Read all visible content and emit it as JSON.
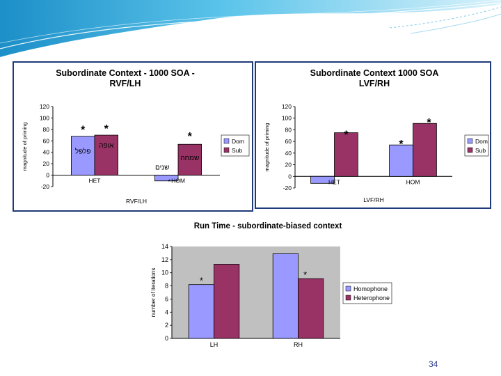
{
  "slide": {
    "page_number": "34"
  },
  "colors": {
    "dom": "#9999ff",
    "sub": "#993366",
    "plot_bg": "#c0c0c0",
    "border": "#1f3a7a"
  },
  "chart_data": [
    {
      "type": "bar",
      "title": "Subordinate Context - 1000 SOA -",
      "subtitle": "RVF/LH",
      "xlabel": "RVF/LH",
      "ylabel": "magnitude of priming",
      "ylim": [
        -20,
        120
      ],
      "yticks": [
        "120",
        "100",
        "80",
        "60",
        "40",
        "20",
        "0",
        "-20"
      ],
      "categories": [
        "HET",
        "HOM"
      ],
      "series": [
        {
          "name": "Dom",
          "values": [
            68,
            -10
          ]
        },
        {
          "name": "Sub",
          "values": [
            70,
            54
          ]
        }
      ],
      "annotations": [
        "*",
        "*",
        "*",
        "*"
      ],
      "hebrew_labels": [
        "פלפל",
        "אופה",
        "שנים",
        "שמחה"
      ]
    },
    {
      "type": "bar",
      "title": "Subordinate Context 1000 SOA",
      "subtitle": "LVF/RH",
      "xlabel": "LVF/RH",
      "ylabel": "magnitude of priming",
      "ylim": [
        -20,
        120
      ],
      "yticks": [
        "120",
        "100",
        "80",
        "60",
        "40",
        "20",
        "0",
        "-20"
      ],
      "categories": [
        "HET",
        "HOM"
      ],
      "series": [
        {
          "name": "Dom",
          "values": [
            -12,
            54
          ]
        },
        {
          "name": "Sub",
          "values": [
            75,
            91
          ]
        }
      ],
      "annotations": [
        "*",
        "*",
        "*"
      ]
    },
    {
      "type": "bar",
      "title": "Run Time - subordinate-biased context",
      "xlabel": "",
      "ylabel": "number of iterations",
      "ylim": [
        0,
        14
      ],
      "yticks": [
        "14",
        "12",
        "10",
        "8",
        "6",
        "4",
        "2",
        "0"
      ],
      "categories": [
        "LH",
        "RH"
      ],
      "series": [
        {
          "name": "Homophone",
          "values": [
            8.2,
            12.9
          ]
        },
        {
          "name": "Heterophone",
          "values": [
            11.3,
            9.1
          ]
        }
      ],
      "annotations": [
        "*",
        "*"
      ]
    }
  ]
}
